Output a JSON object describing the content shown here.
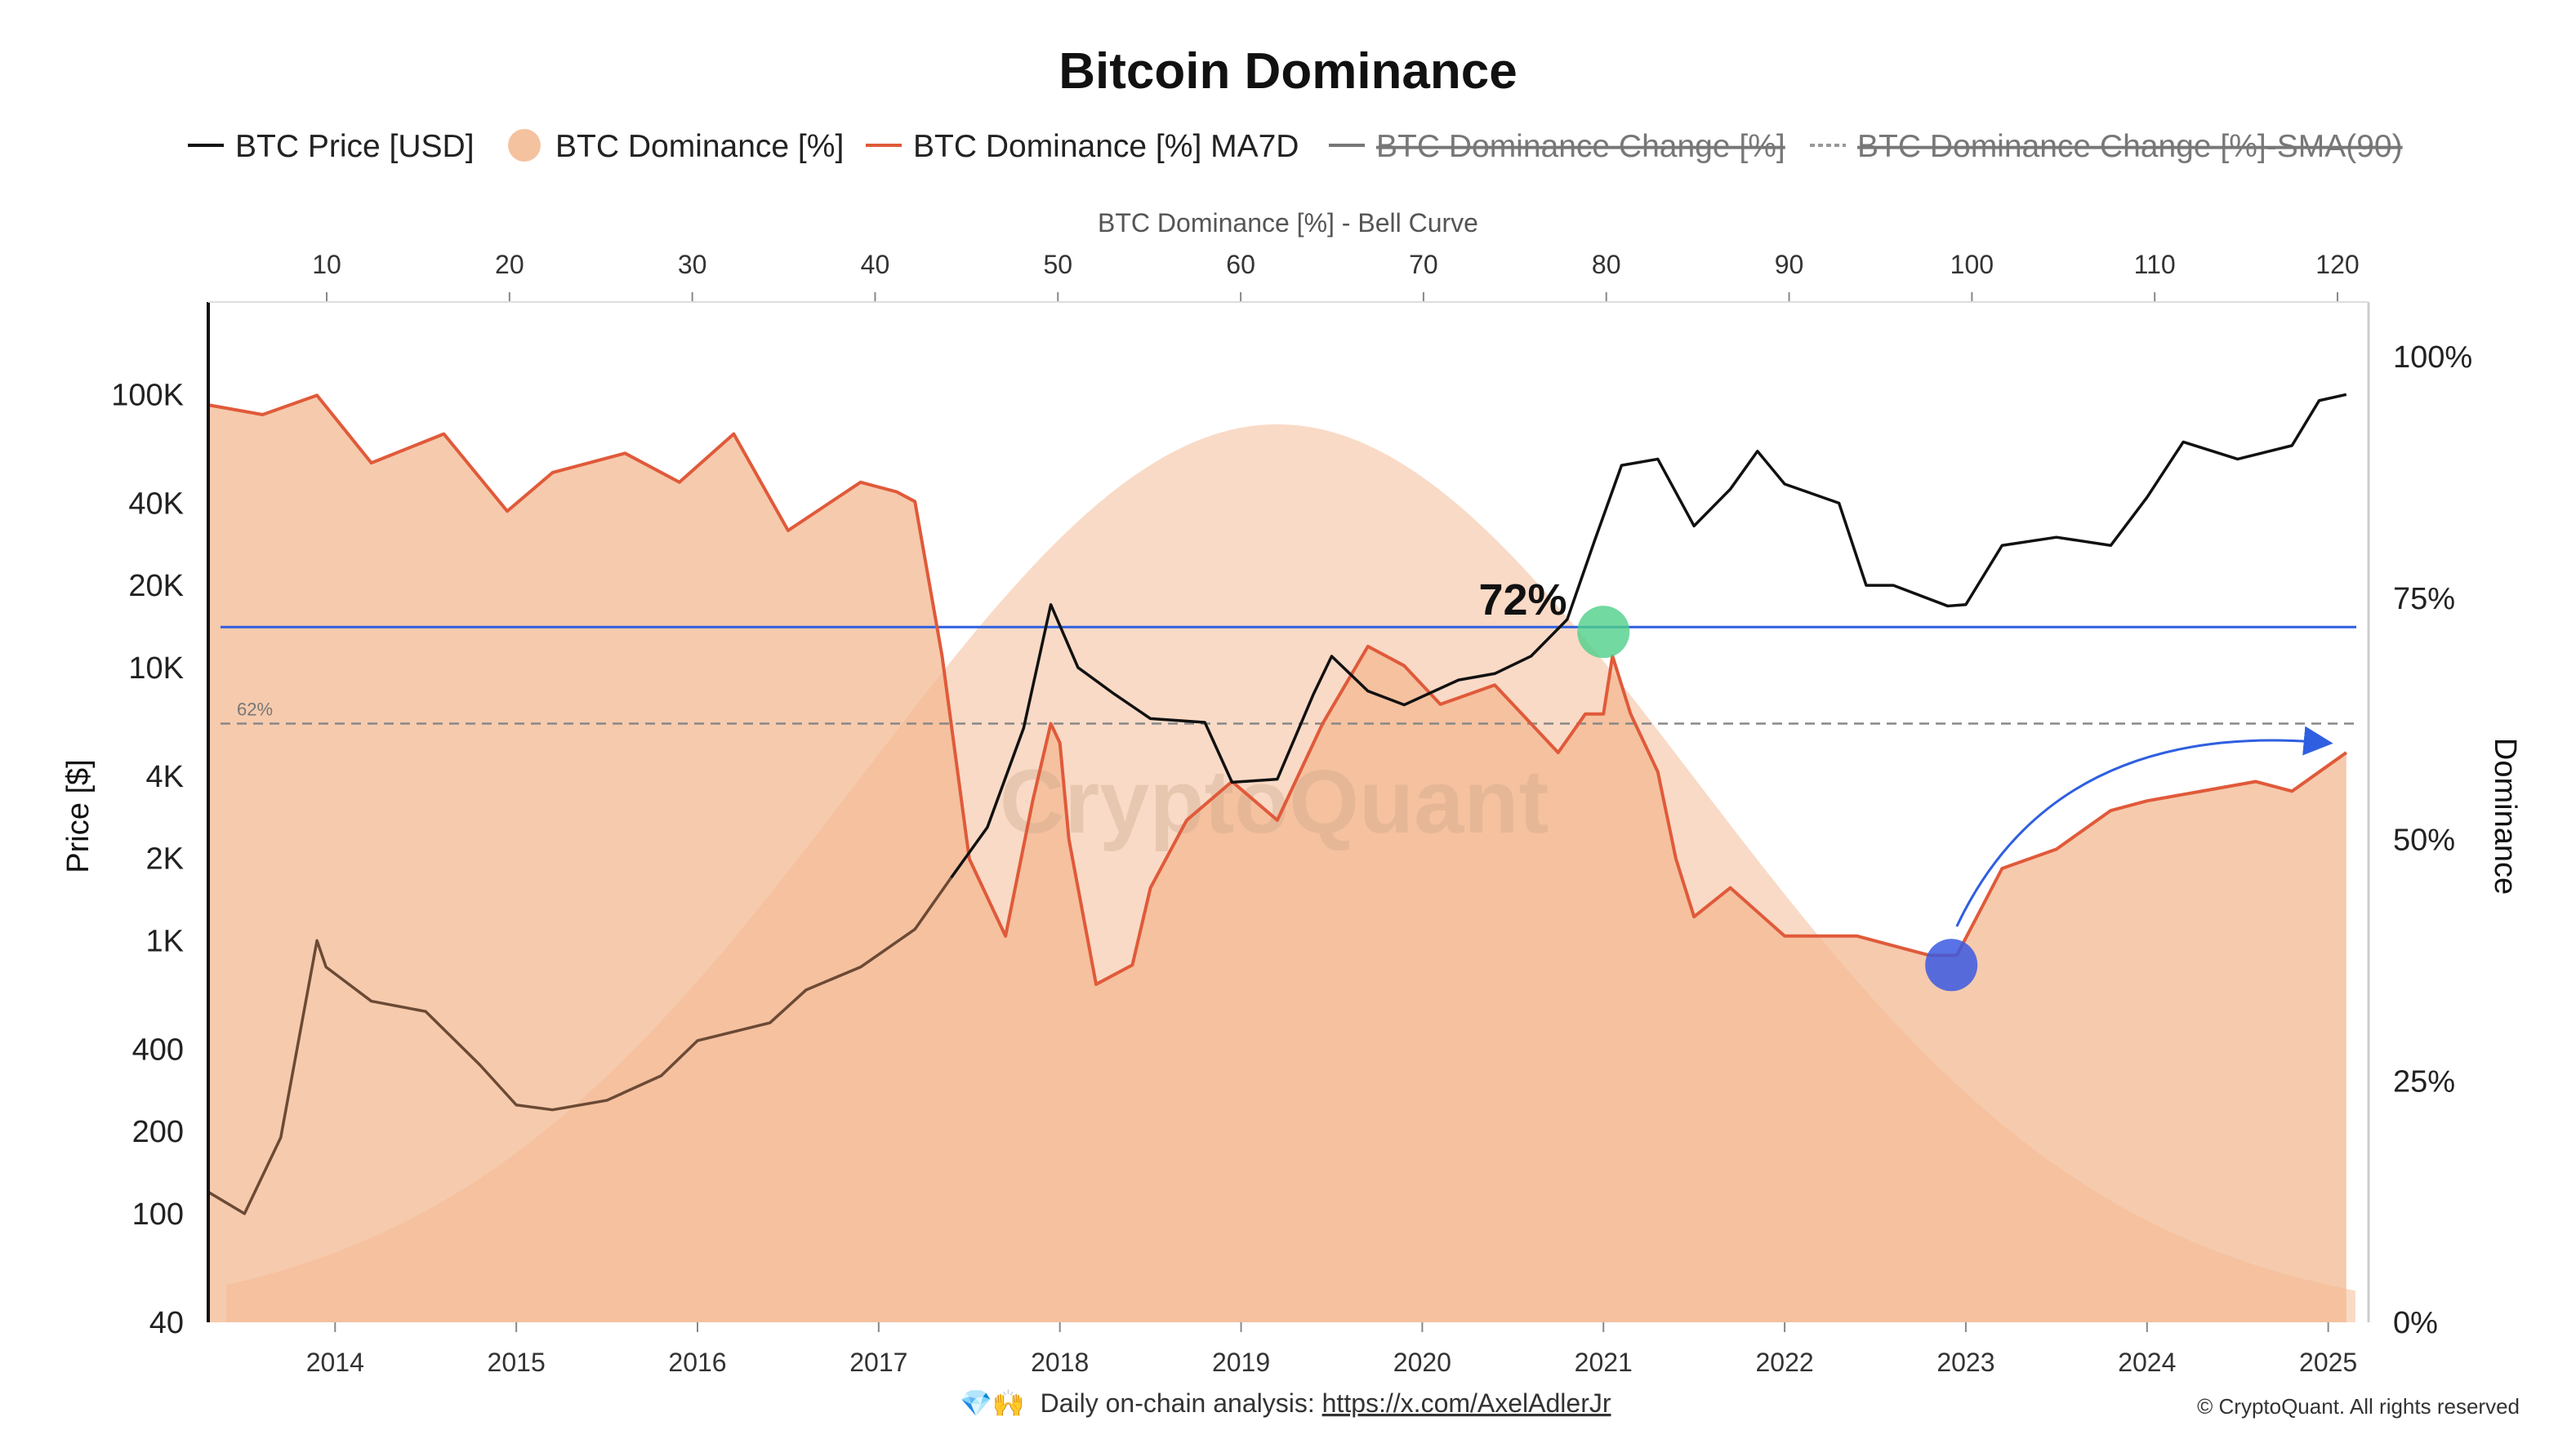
{
  "title": "Bitcoin Dominance",
  "legend": [
    {
      "label": "BTC Price [USD]",
      "marker": "line",
      "color": "#111111",
      "struck": false
    },
    {
      "label": "BTC Dominance [%]",
      "marker": "dot",
      "color": "#f5c2a0",
      "struck": false
    },
    {
      "label": "BTC Dominance [%] MA7D",
      "marker": "line",
      "color": "#e05a3a",
      "struck": false
    },
    {
      "label": "BTC Dominance Change [%]",
      "marker": "line",
      "color": "#777777",
      "struck": true
    },
    {
      "label": "BTC Dominance Change [%]-SMA(90)",
      "marker": "dash",
      "color": "#999999",
      "struck": true
    }
  ],
  "chart_data": {
    "type": "line",
    "x_axis": {
      "ticks": [
        "2014",
        "2015",
        "2016",
        "2017",
        "2018",
        "2019",
        "2020",
        "2021",
        "2022",
        "2023",
        "2024",
        "2025"
      ],
      "range": [
        2013.3,
        2025.2
      ]
    },
    "top_axis": {
      "title": "BTC Dominance [%] - Bell Curve",
      "ticks": [
        "10",
        "20",
        "30",
        "40",
        "50",
        "60",
        "70",
        "80",
        "90",
        "100",
        "110",
        "120"
      ]
    },
    "y_left": {
      "title": "Price [$]",
      "scale": "log",
      "ticks": [
        "100K",
        "40K",
        "20K",
        "10K",
        "4K",
        "2K",
        "1K",
        "400",
        "200",
        "100",
        "40"
      ],
      "range": [
        40,
        160000
      ]
    },
    "y_right": {
      "title": "Dominance",
      "ticks": [
        "100%",
        "75%",
        "50%",
        "25%",
        "0%"
      ],
      "range": [
        0,
        100
      ]
    },
    "series": [
      {
        "name": "BTC Price [USD]",
        "color": "#111111",
        "x": [
          2013.3,
          2013.5,
          2013.7,
          2013.9,
          2013.95,
          2014.2,
          2014.5,
          2014.8,
          2015.0,
          2015.2,
          2015.5,
          2015.8,
          2016.0,
          2016.4,
          2016.6,
          2016.9,
          2017.2,
          2017.4,
          2017.6,
          2017.8,
          2017.95,
          2018.1,
          2018.3,
          2018.5,
          2018.8,
          2018.95,
          2019.2,
          2019.4,
          2019.5,
          2019.7,
          2019.9,
          2020.2,
          2020.4,
          2020.6,
          2020.8,
          2020.95,
          2021.1,
          2021.3,
          2021.5,
          2021.7,
          2021.85,
          2022.0,
          2022.3,
          2022.45,
          2022.6,
          2022.9,
          2023.0,
          2023.2,
          2023.5,
          2023.8,
          2024.0,
          2024.2,
          2024.5,
          2024.8,
          2024.95,
          2025.1
        ],
        "values": [
          120,
          100,
          190,
          1000,
          800,
          600,
          550,
          350,
          250,
          240,
          260,
          320,
          430,
          500,
          660,
          800,
          1100,
          1700,
          2600,
          6000,
          17000,
          10000,
          8000,
          6500,
          6300,
          3800,
          3900,
          8000,
          11000,
          8200,
          7300,
          9000,
          9500,
          11000,
          15000,
          29000,
          55000,
          58000,
          33000,
          45000,
          62000,
          47000,
          40000,
          20000,
          20000,
          16800,
          17000,
          28000,
          30000,
          28000,
          42000,
          67000,
          58000,
          65000,
          95000,
          100000
        ]
      },
      {
        "name": "BTC Dominance [%] MA7D",
        "color": "#e05a3a",
        "x": [
          2013.3,
          2013.6,
          2013.9,
          2014.2,
          2014.6,
          2014.95,
          2015.2,
          2015.6,
          2015.9,
          2016.2,
          2016.5,
          2016.9,
          2017.1,
          2017.2,
          2017.35,
          2017.5,
          2017.7,
          2017.85,
          2017.95,
          2018.0,
          2018.05,
          2018.2,
          2018.4,
          2018.5,
          2018.7,
          2018.95,
          2019.2,
          2019.45,
          2019.7,
          2019.9,
          2020.1,
          2020.4,
          2020.6,
          2020.75,
          2020.9,
          2021.0,
          2021.05,
          2021.15,
          2021.3,
          2021.4,
          2021.5,
          2021.7,
          2022.0,
          2022.4,
          2022.6,
          2022.8,
          2022.95,
          2023.2,
          2023.5,
          2023.8,
          2024.0,
          2024.3,
          2024.6,
          2024.8,
          2024.95,
          2025.1
        ],
        "values": [
          95,
          94,
          96,
          89,
          92,
          84,
          88,
          90,
          87,
          92,
          82,
          87,
          86,
          85,
          69,
          48,
          40,
          54,
          62,
          60,
          50,
          35,
          37,
          45,
          52,
          56,
          52,
          62,
          70,
          68,
          64,
          66,
          62,
          59,
          63,
          63,
          69,
          63,
          57,
          48,
          42,
          45,
          40,
          40,
          39,
          38,
          38,
          47,
          49,
          53,
          54,
          55,
          56,
          55,
          57,
          59
        ]
      },
      {
        "name": "BTC Dominance [%]",
        "color": "#f5c2a0",
        "type": "area"
      }
    ],
    "bell_curve": {
      "color": "#f5c2a0",
      "peak_x": 2019.2,
      "peak_pct": 93
    },
    "reference_lines": [
      {
        "label": "",
        "value_pct": 72,
        "color": "#2f5fe0",
        "style": "solid"
      },
      {
        "label": "62%",
        "value_pct": 62,
        "color": "#888888",
        "style": "dashed"
      }
    ],
    "annotations": [
      {
        "text": "72%",
        "x": 2020.6,
        "pct": 75
      },
      {
        "marker": "green-circle",
        "x": 2021.0,
        "pct": 71.5
      },
      {
        "marker": "blue-circle",
        "x": 2022.92,
        "pct": 37
      },
      {
        "marker": "arrow",
        "from_x": 2022.95,
        "to_x": 2025.0,
        "pct_start": 41,
        "pct_end": 60
      }
    ],
    "grid": false
  },
  "watermark": "CryptoQuant",
  "footer": {
    "emoji": "💎🙌",
    "text": "Daily on-chain analysis: ",
    "link": "https://x.com/AxelAdlerJr"
  },
  "copyright": "© CryptoQuant. All rights reserved"
}
